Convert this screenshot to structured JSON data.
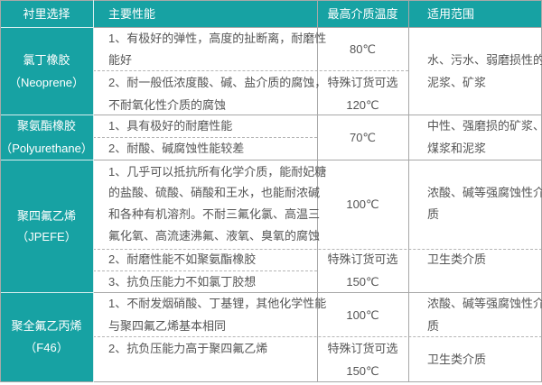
{
  "header": {
    "col1": "衬里选择",
    "col2": "主要性能",
    "col3": "最高介质温度",
    "col4": "适用范围"
  },
  "colors": {
    "accent": "#17a2a3",
    "border": "#a8a8a8",
    "text": "#555555"
  },
  "rows": [
    {
      "name": [
        "氯丁橡胶",
        "（Neoprene）"
      ],
      "properties": [
        [
          "1、有极好的弹性，高度的扯断离，耐磨性",
          "能好"
        ],
        [
          "2、耐一般低浓度酸、碱、盐介质的腐蚀，",
          "不耐氧化性介质的腐蚀"
        ]
      ],
      "temp": [
        "80℃",
        "特殊订货可选",
        "120℃"
      ],
      "usage": [
        "水、污水、弱磨损性的",
        "泥浆、矿浆"
      ]
    },
    {
      "name": [
        "聚氨酯橡胶",
        "（Polyurethane）"
      ],
      "properties": [
        [
          "1、具有极好的耐磨性能"
        ],
        [
          "2、耐酸、碱腐蚀性能较差"
        ]
      ],
      "temp": [
        "70℃"
      ],
      "usage": [
        "中性、强磨损的矿浆、",
        "煤浆和泥浆"
      ]
    },
    {
      "name": [
        "聚四氟乙烯",
        "（JPEFE）"
      ],
      "properties": [
        [
          "1、几乎可以抵抗所有化学介质，能耐妃糖",
          "的盐酸、硫酸、硝酸和王水，也能耐浓碱",
          "和各种有机溶剂。不耐三氟化氯、高温三",
          "氟化氧、高流速沸氟、液氧、臭氧的腐蚀"
        ],
        [
          "2、耐磨性能不如聚氨酯橡胶"
        ],
        [
          "3、抗负压能力不如氯丁胶想"
        ]
      ],
      "temp": [
        "100℃",
        "特殊订货可选",
        "150℃"
      ],
      "usage": [
        "浓酸、碱等强腐蚀性介",
        "质",
        "卫生类介质"
      ]
    },
    {
      "name": [
        "聚全氟乙丙烯",
        "（F46）"
      ],
      "properties": [
        [
          "1、不耐发烟硝酸、丁基锂，其他化学性能",
          "与聚四氟乙烯基本相同"
        ],
        [
          "2、抗负压能力高于聚四氟乙烯"
        ]
      ],
      "temp": [
        "100℃",
        "特殊订货可选",
        "150℃"
      ],
      "usage": [
        "浓酸、碱等强腐蚀性介",
        "质",
        "卫生类介质"
      ]
    }
  ]
}
